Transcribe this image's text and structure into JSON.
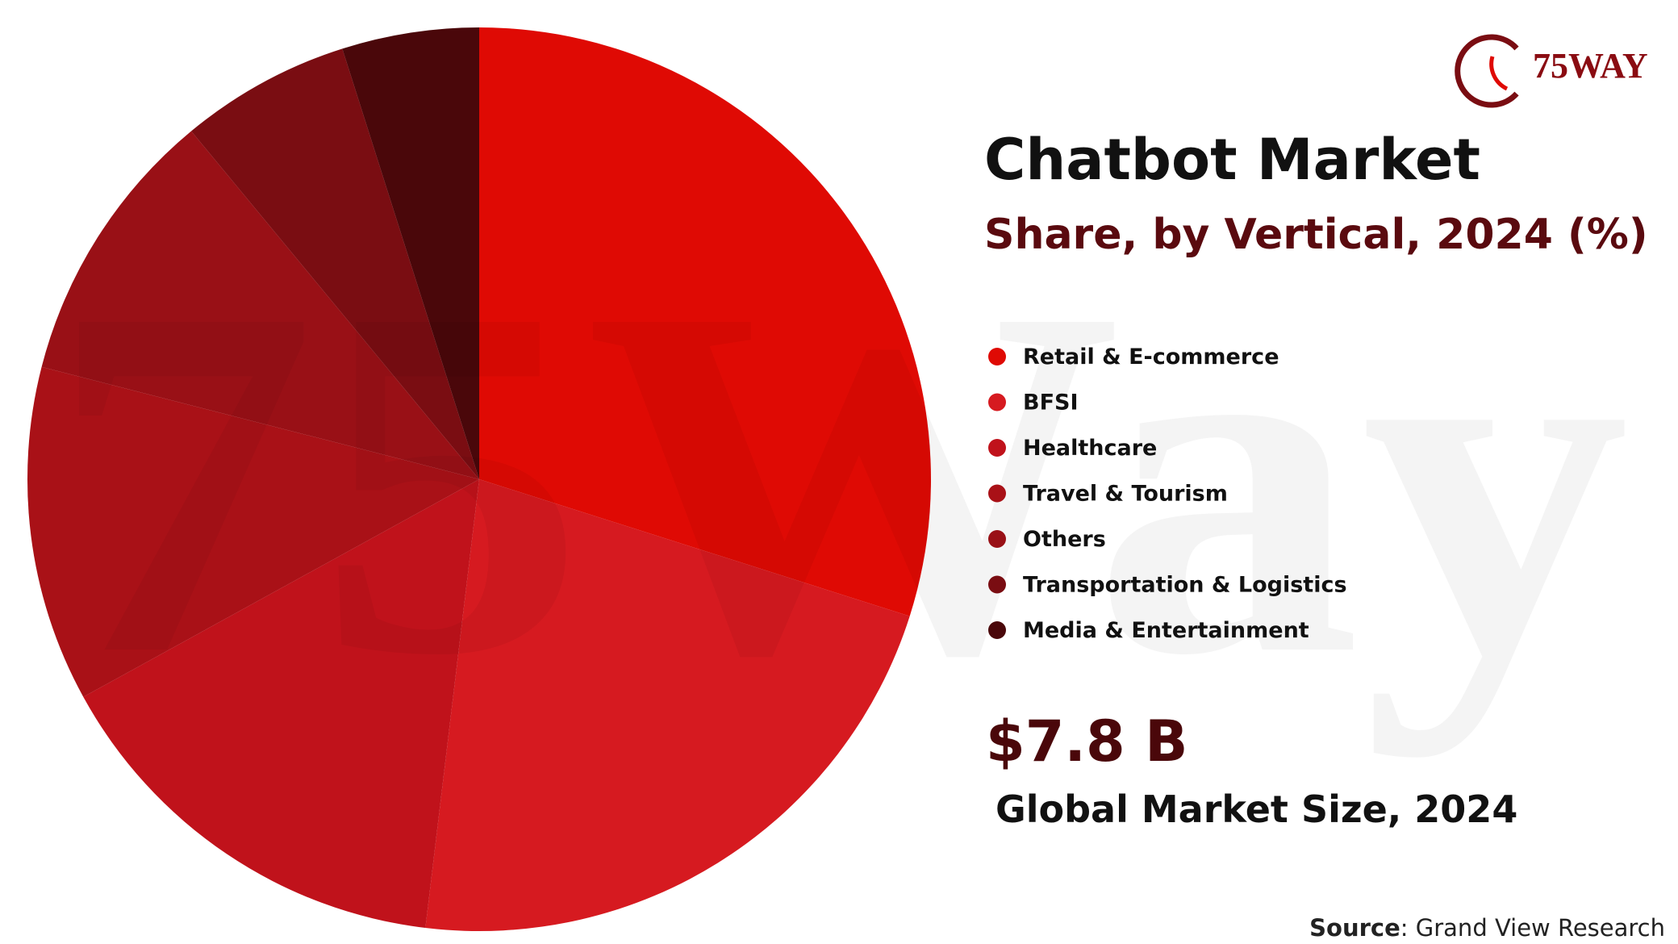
{
  "logo": "75WAY",
  "watermark": "75Way",
  "chart_data": {
    "type": "pie",
    "title": "Chatbot Market",
    "subtitle": "Share, by Vertical, 2024 (%)",
    "categories": [
      "Retail & E-commerce",
      "BFSI",
      "Healthcare",
      "Travel & Tourism",
      "Others",
      "Transportation & Logistics",
      "Media & Entertainment"
    ],
    "values": [
      29.9,
      22,
      15.1,
      12,
      10,
      6.1,
      4.9
    ],
    "colors": [
      "#df0a04",
      "#d61a20",
      "#c0121b",
      "#a91117",
      "#991016",
      "#7a0d12",
      "#4a070a"
    ],
    "legend": "right"
  },
  "market_size": "$7.8 B",
  "market_size_label": "Global Market Size, 2024",
  "source_label": "Source",
  "source": ": Grand View Research"
}
